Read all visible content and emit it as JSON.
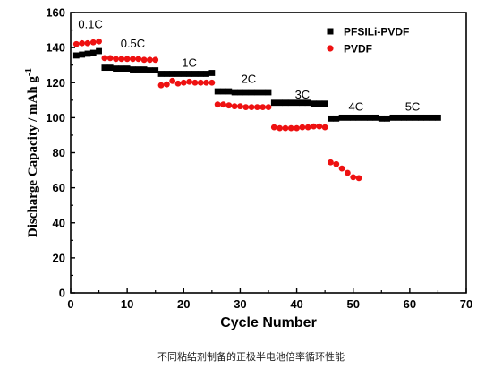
{
  "chart_data": {
    "type": "scatter",
    "xlabel": "Cycle Number",
    "ylabel": "Discharge Capacity / mAh g",
    "ylabel_superscript": "-1",
    "xlim": [
      0,
      70
    ],
    "ylim": [
      0,
      160
    ],
    "x_ticks": [
      "0",
      "10",
      "20",
      "30",
      "40",
      "50",
      "60",
      "70"
    ],
    "y_ticks": [
      "0",
      "20",
      "40",
      "60",
      "80",
      "100",
      "120",
      "140",
      "160"
    ],
    "legend_position": "top-right",
    "grid": false,
    "series": [
      {
        "name": "PFSILi-PVDF",
        "marker": "square",
        "color": "#000000",
        "points": [
          [
            1,
            135.5
          ],
          [
            2,
            136
          ],
          [
            3,
            136.5
          ],
          [
            4,
            137
          ],
          [
            5,
            138
          ],
          [
            6,
            128.5
          ],
          [
            7,
            128.5
          ],
          [
            8,
            128
          ],
          [
            9,
            128
          ],
          [
            10,
            128
          ],
          [
            11,
            127.5
          ],
          [
            12,
            127.5
          ],
          [
            13,
            127.5
          ],
          [
            14,
            127
          ],
          [
            15,
            127
          ],
          [
            16,
            125
          ],
          [
            17,
            125
          ],
          [
            18,
            125
          ],
          [
            19,
            125
          ],
          [
            20,
            125
          ],
          [
            21,
            125
          ],
          [
            22,
            125
          ],
          [
            23,
            125
          ],
          [
            24,
            125
          ],
          [
            25,
            125.5
          ],
          [
            26,
            115
          ],
          [
            27,
            115
          ],
          [
            28,
            115
          ],
          [
            29,
            114.5
          ],
          [
            30,
            114.5
          ],
          [
            31,
            114.5
          ],
          [
            32,
            114.5
          ],
          [
            33,
            114.5
          ],
          [
            34,
            114.5
          ],
          [
            35,
            114.5
          ],
          [
            36,
            108.5
          ],
          [
            37,
            108.5
          ],
          [
            38,
            108.5
          ],
          [
            39,
            108.5
          ],
          [
            40,
            108.5
          ],
          [
            41,
            108.5
          ],
          [
            42,
            108.5
          ],
          [
            43,
            108
          ],
          [
            44,
            108
          ],
          [
            45,
            108
          ],
          [
            46,
            99.5
          ],
          [
            47,
            99.5
          ],
          [
            48,
            100
          ],
          [
            49,
            100
          ],
          [
            50,
            100
          ],
          [
            51,
            100
          ],
          [
            52,
            100
          ],
          [
            53,
            100
          ],
          [
            54,
            100
          ],
          [
            55,
            99.5
          ],
          [
            56,
            99.5
          ],
          [
            57,
            100
          ],
          [
            58,
            100
          ],
          [
            59,
            100
          ],
          [
            60,
            100
          ],
          [
            61,
            100
          ],
          [
            62,
            100
          ],
          [
            63,
            100
          ],
          [
            64,
            100
          ],
          [
            65,
            100
          ]
        ]
      },
      {
        "name": "PVDF",
        "marker": "circle",
        "color": "#ee1111",
        "points": [
          [
            1,
            142
          ],
          [
            2,
            142.5
          ],
          [
            3,
            142.5
          ],
          [
            4,
            143
          ],
          [
            5,
            143.5
          ],
          [
            6,
            134
          ],
          [
            7,
            134
          ],
          [
            8,
            133.5
          ],
          [
            9,
            133.5
          ],
          [
            10,
            133.5
          ],
          [
            11,
            133.5
          ],
          [
            12,
            133.5
          ],
          [
            13,
            133
          ],
          [
            14,
            133
          ],
          [
            15,
            133
          ],
          [
            16,
            118.5
          ],
          [
            17,
            119
          ],
          [
            18,
            121
          ],
          [
            19,
            119.5
          ],
          [
            20,
            120
          ],
          [
            21,
            120.5
          ],
          [
            22,
            120
          ],
          [
            23,
            120
          ],
          [
            24,
            120
          ],
          [
            25,
            120
          ],
          [
            26,
            107.5
          ],
          [
            27,
            107.5
          ],
          [
            28,
            107
          ],
          [
            29,
            106.5
          ],
          [
            30,
            106.5
          ],
          [
            31,
            106
          ],
          [
            32,
            106
          ],
          [
            33,
            106
          ],
          [
            34,
            106
          ],
          [
            35,
            106
          ],
          [
            36,
            94.5
          ],
          [
            37,
            94
          ],
          [
            38,
            94
          ],
          [
            39,
            94
          ],
          [
            40,
            94
          ],
          [
            41,
            94.5
          ],
          [
            42,
            94.5
          ],
          [
            43,
            95
          ],
          [
            44,
            95
          ],
          [
            45,
            94.5
          ],
          [
            46,
            74.5
          ],
          [
            47,
            73.5
          ],
          [
            48,
            71
          ],
          [
            49,
            68.5
          ],
          [
            50,
            66
          ],
          [
            51,
            65.5
          ]
        ]
      }
    ],
    "annotations": [
      {
        "text": "0.1C",
        "x": 3.5,
        "y": 151
      },
      {
        "text": "0.5C",
        "x": 11,
        "y": 140
      },
      {
        "text": "1C",
        "x": 21,
        "y": 129
      },
      {
        "text": "2C",
        "x": 31.5,
        "y": 120
      },
      {
        "text": "3C",
        "x": 41,
        "y": 111
      },
      {
        "text": "4C",
        "x": 50.5,
        "y": 104
      },
      {
        "text": "5C",
        "x": 60.5,
        "y": 104
      }
    ]
  },
  "caption": "不同粘结剂制备的正极半电池倍率循环性能"
}
